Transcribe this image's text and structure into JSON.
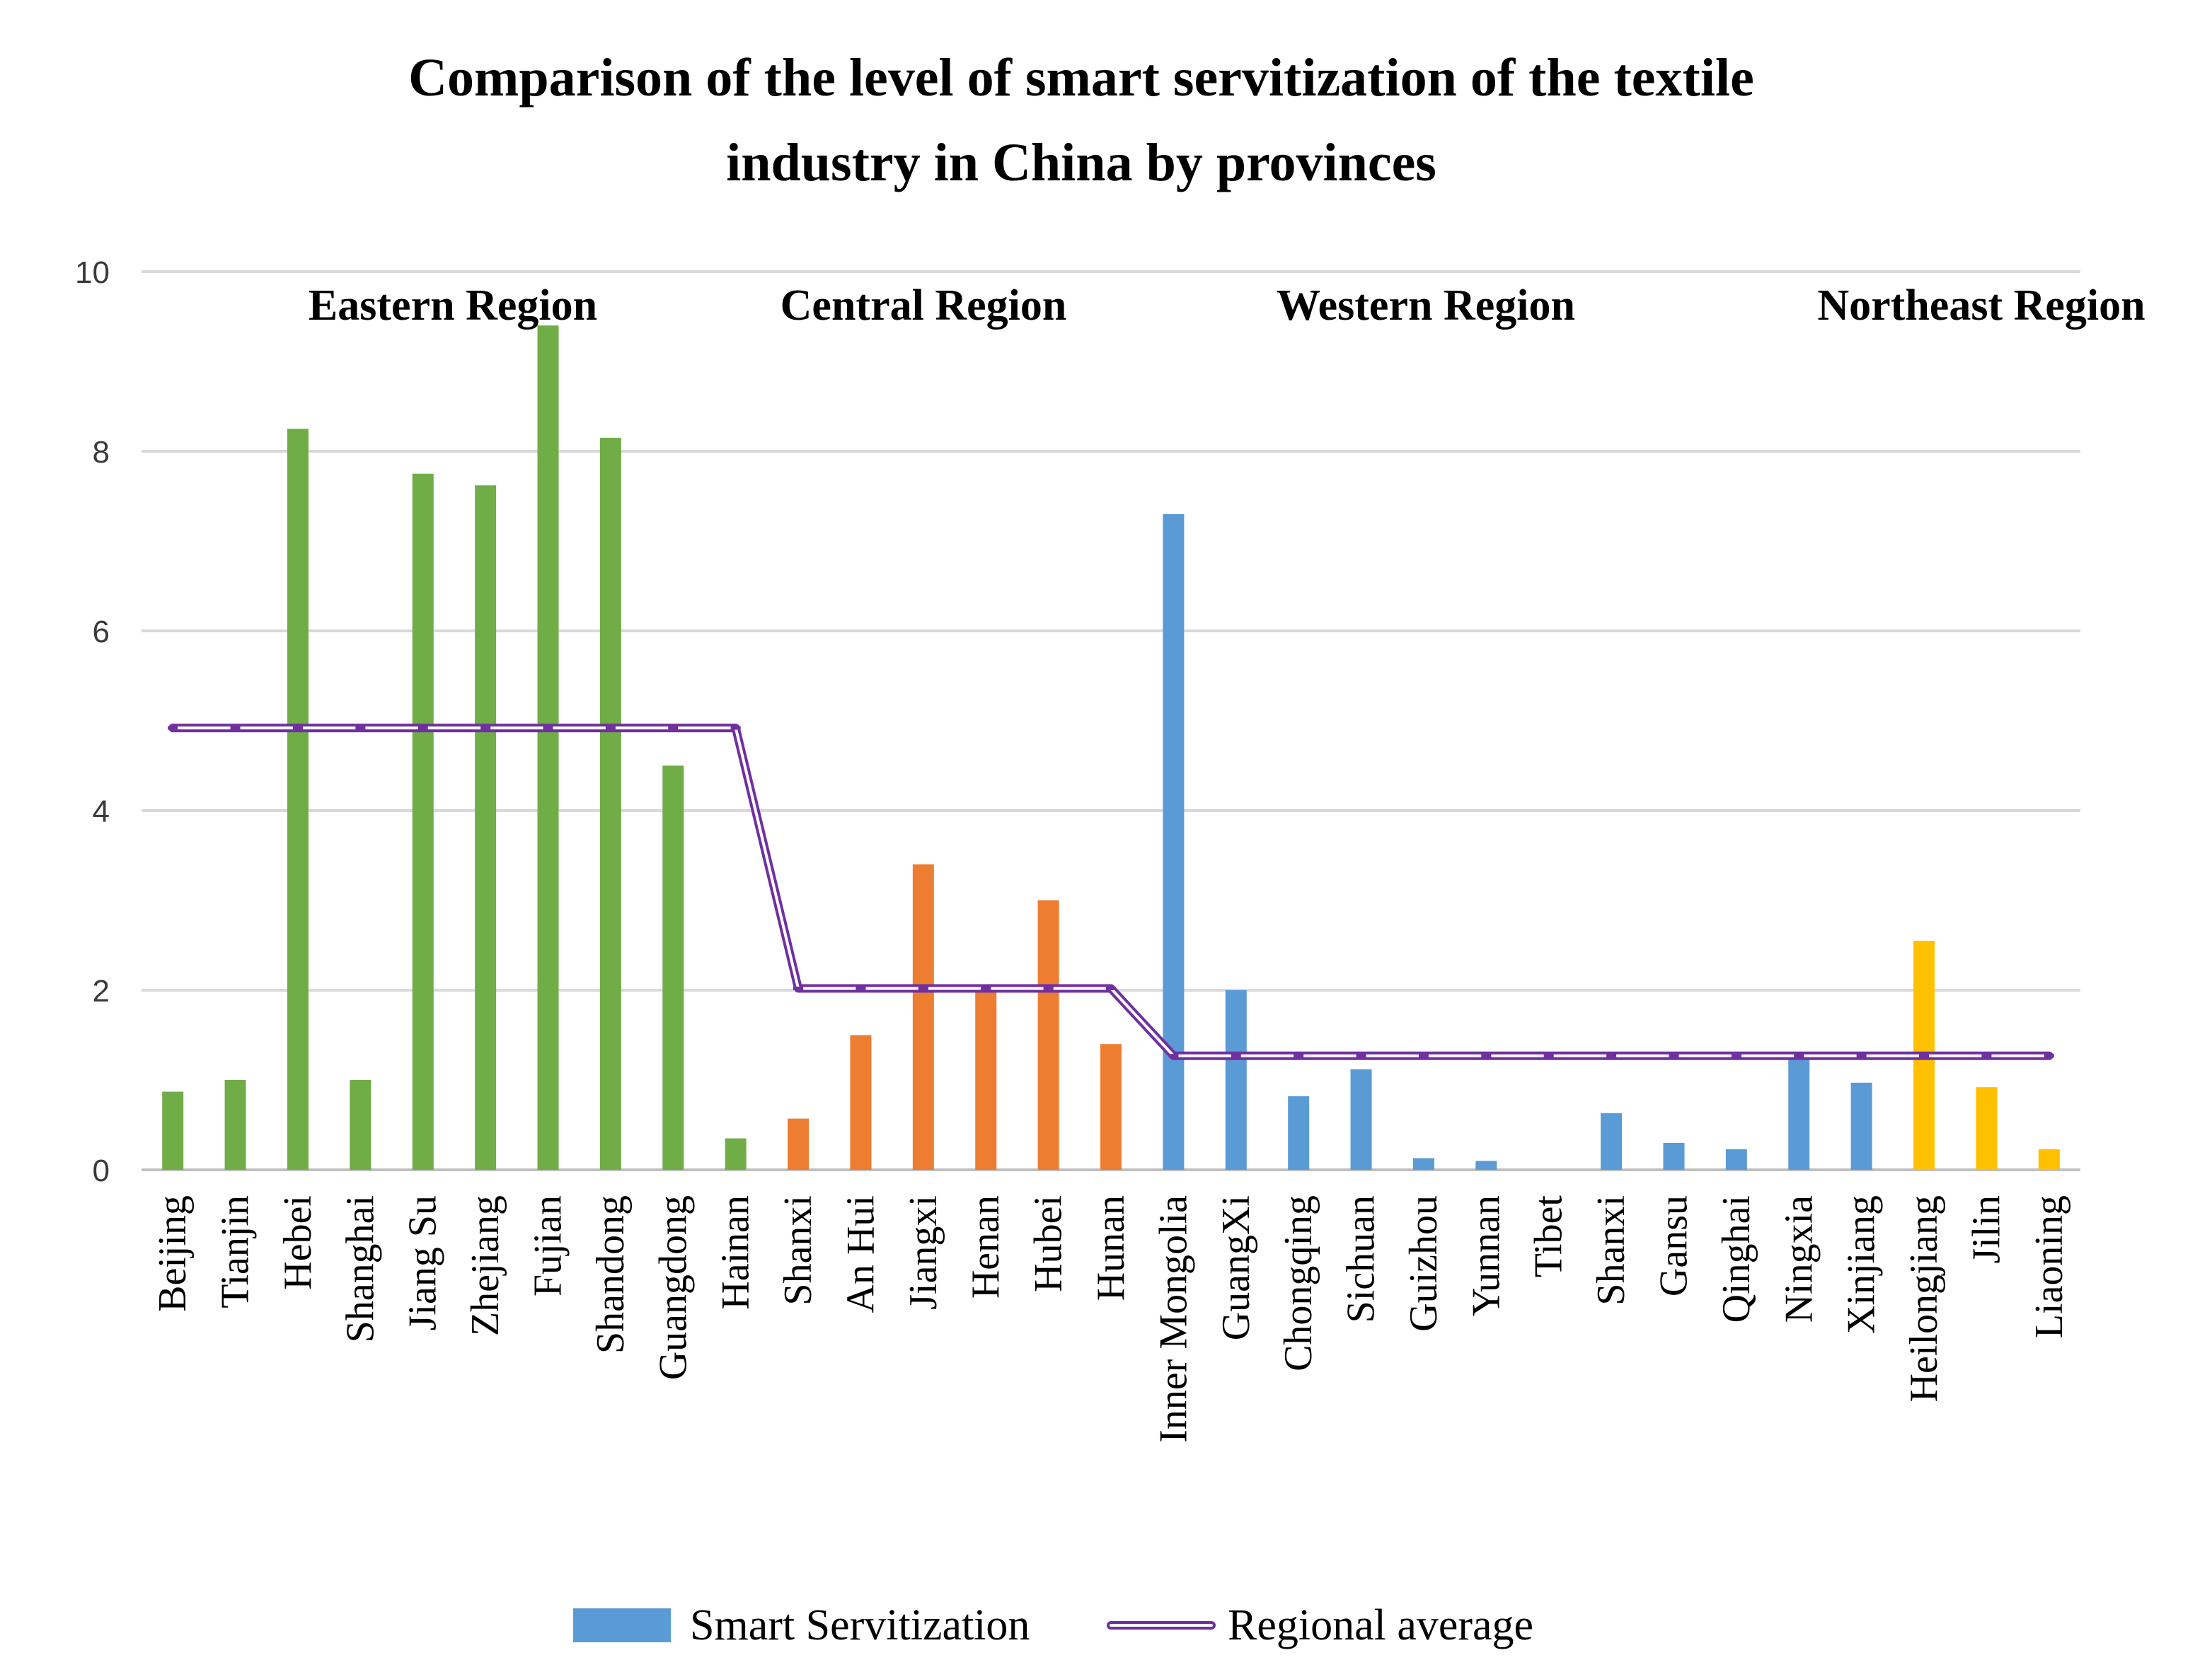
{
  "chart_data": {
    "type": "bar",
    "title": [
      "Comparison of the level of smart servitization of the textile",
      "industry in China by provinces"
    ],
    "ylim": [
      0,
      10
    ],
    "yticks": [
      0,
      2,
      4,
      6,
      8,
      10
    ],
    "categories": [
      "Beijing",
      "Tianjin",
      "Hebei",
      "Shanghai",
      "Jiang Su",
      "Zhejiang",
      "Fujian",
      "Shandong",
      "Guangdong",
      "Hainan",
      "Shanxi",
      "An Hui",
      "Jiangxi",
      "Henan",
      "Hubei",
      "Hunan",
      "Inner Mongolia",
      "GuangXi",
      "Chongqing",
      "Sichuan",
      "Guizhou",
      "Yunnan",
      "Tibet",
      "Shanxi",
      "Gansu",
      "Qinghai",
      "Ningxia",
      "Xinjiang",
      "Heilongjiang",
      "Jilin",
      "Liaoning"
    ],
    "series": [
      {
        "name": "Smart Servitization",
        "type": "bar",
        "values": [
          0.87,
          1.0,
          8.25,
          1.0,
          7.75,
          7.62,
          9.4,
          8.15,
          4.5,
          0.35,
          0.57,
          1.5,
          3.4,
          2.0,
          3.0,
          1.4,
          7.3,
          2.0,
          0.82,
          1.12,
          0.13,
          0.1,
          0,
          0.63,
          0.3,
          0.23,
          1.25,
          0.97,
          2.55,
          0.92,
          0.23
        ],
        "colors": {
          "eastern": "#70ad47",
          "central": "#ed7d31",
          "western": "#5b9bd5",
          "northeast": "#ffc000"
        }
      },
      {
        "name": "Regional average",
        "type": "line",
        "color": "#7030a0",
        "values": [
          4.92,
          4.92,
          4.92,
          4.92,
          4.92,
          4.92,
          4.92,
          4.92,
          4.92,
          4.92,
          2.02,
          2.02,
          2.02,
          2.02,
          2.02,
          2.02,
          1.27,
          1.27,
          1.27,
          1.27,
          1.27,
          1.27,
          1.27,
          1.27,
          1.27,
          1.27,
          1.27,
          1.27,
          1.27,
          1.27,
          1.27
        ]
      }
    ],
    "regions": [
      {
        "label": "Eastern Region",
        "key": "eastern",
        "start": 0,
        "end": 9
      },
      {
        "label": "Central Region",
        "key": "central",
        "start": 10,
        "end": 15
      },
      {
        "label": "Western Region",
        "key": "western",
        "start": 16,
        "end": 27
      },
      {
        "label": "Northeast Region",
        "key": "northeast",
        "start": 28,
        "end": 30
      }
    ],
    "legend": {
      "position": "bottom",
      "bar_label": "Smart Servitization",
      "line_label": "Regional average"
    },
    "grid": true
  }
}
